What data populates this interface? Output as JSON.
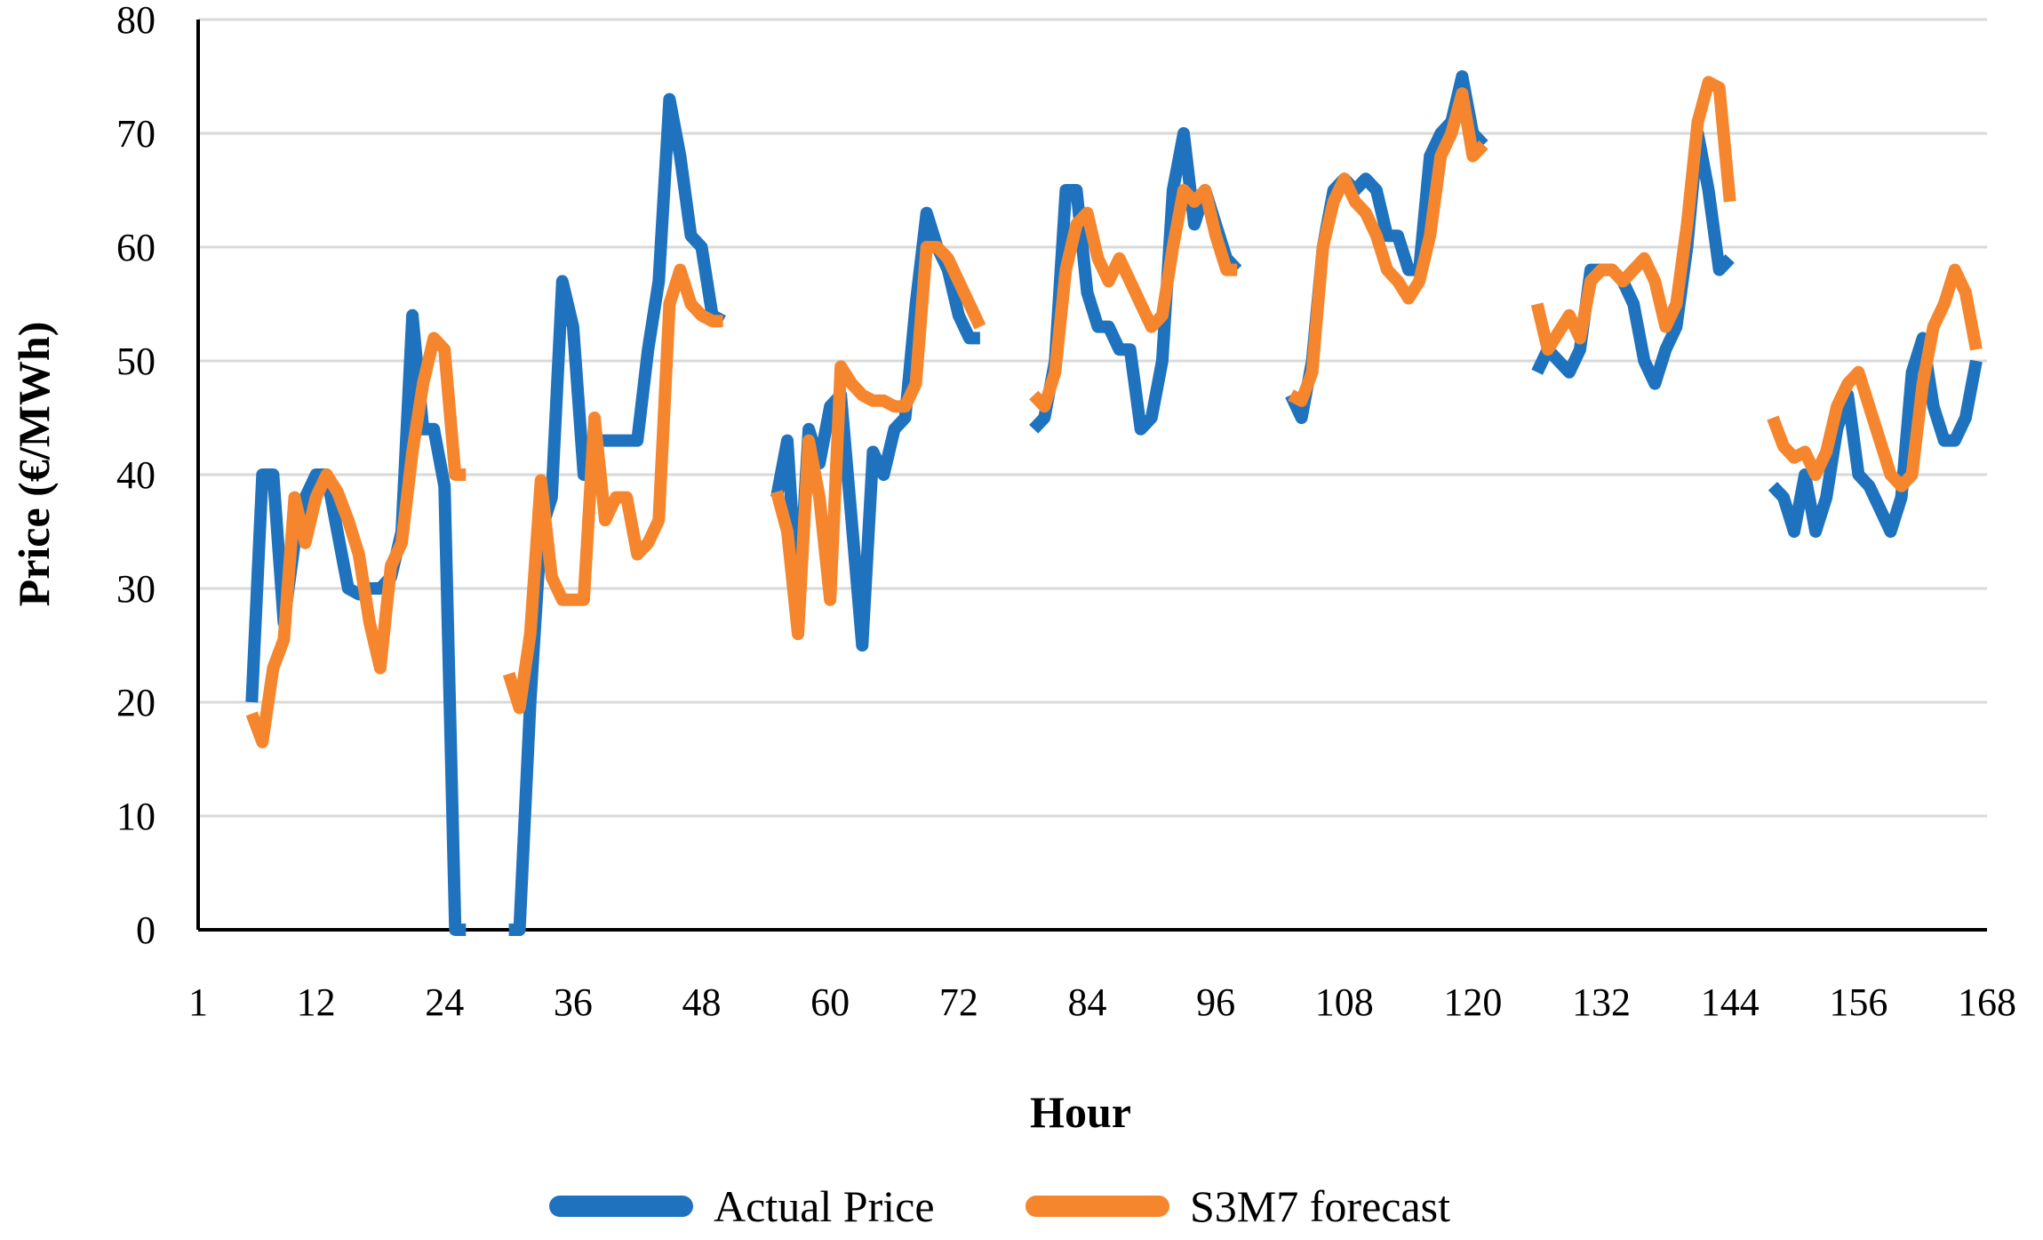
{
  "chart_data": {
    "type": "line",
    "title": "",
    "xlabel": "Hour",
    "ylabel": "Price (€/MWh)",
    "xlim": [
      1,
      168
    ],
    "ylim": [
      0,
      80
    ],
    "x_ticks": [
      1,
      12,
      24,
      36,
      48,
      60,
      72,
      84,
      96,
      108,
      120,
      132,
      144,
      156,
      168
    ],
    "x_tick_labels": [
      "1",
      "12",
      "24",
      "36",
      "48",
      "60",
      "72",
      "84",
      "96",
      "108",
      "120",
      "132",
      "144",
      "156",
      "168"
    ],
    "y_ticks": [
      0,
      10,
      20,
      30,
      40,
      50,
      60,
      70,
      80
    ],
    "y_tick_labels": [
      "0",
      "10",
      "20",
      "30",
      "40",
      "50",
      "60",
      "70",
      "80"
    ],
    "grid": "horizontal",
    "legend_position": "bottom-center",
    "series": [
      {
        "name": "Actual Price",
        "color": "#1f73be",
        "segments": [
          {
            "x": [
              6,
              7,
              8,
              9,
              10,
              11,
              12,
              13,
              14,
              15,
              16,
              17,
              18,
              19,
              20,
              21,
              22,
              23,
              24,
              25,
              26
            ],
            "y": [
              20,
              40,
              40,
              27,
              34,
              38,
              40,
              40,
              35,
              30,
              29.5,
              30,
              30,
              31,
              35,
              54,
              44,
              44,
              39,
              0,
              0
            ]
          },
          {
            "x": [
              30,
              31,
              32,
              33,
              34,
              35,
              36,
              37,
              38,
              39,
              40,
              41,
              42,
              43,
              44,
              45,
              46,
              47,
              48,
              49,
              50
            ],
            "y": [
              0,
              0,
              20,
              35,
              38,
              57,
              53,
              40,
              43,
              43,
              43,
              43,
              43,
              51,
              57,
              73,
              68,
              61,
              60,
              54,
              53.5
            ]
          },
          {
            "x": [
              55,
              56,
              57,
              58,
              59,
              60,
              61,
              62,
              63,
              64,
              65,
              66,
              67,
              68,
              69,
              70,
              71,
              72,
              73,
              74
            ],
            "y": [
              38,
              43,
              28,
              44,
              41,
              46,
              47,
              36,
              25,
              42,
              40,
              44,
              45,
              55,
              63,
              60,
              58,
              54,
              52,
              52
            ]
          },
          {
            "x": [
              79,
              80,
              81,
              82,
              83,
              84,
              85,
              86,
              87,
              88,
              89,
              90,
              91,
              92,
              93,
              94,
              95,
              96,
              97,
              98
            ],
            "y": [
              44,
              45,
              50,
              65,
              65,
              56,
              53,
              53,
              51,
              51,
              44,
              45,
              50,
              65,
              70,
              62,
              65,
              62,
              59,
              58
            ]
          },
          {
            "x": [
              103,
              104,
              105,
              106,
              107,
              108,
              109,
              110,
              111,
              112,
              113,
              114,
              115,
              116,
              117,
              118,
              119,
              120,
              121
            ],
            "y": [
              47,
              45,
              50,
              60,
              65,
              66,
              65,
              66,
              65,
              61,
              61,
              58,
              58,
              68,
              70,
              71,
              75,
              70,
              69
            ]
          },
          {
            "x": [
              126,
              127,
              128,
              129,
              130,
              131,
              132,
              133,
              134,
              135,
              136,
              137,
              138,
              139,
              140,
              141,
              142,
              143,
              144
            ],
            "y": [
              49,
              51,
              50,
              49,
              51,
              58,
              58,
              58,
              57,
              55,
              50,
              48,
              51,
              53,
              60,
              70,
              65,
              58,
              59
            ]
          },
          {
            "x": [
              148,
              149,
              150,
              151,
              152,
              153,
              154,
              155,
              156,
              157,
              158,
              159,
              160,
              161,
              162,
              163,
              164,
              165,
              166,
              167
            ],
            "y": [
              39,
              38,
              35,
              40,
              35,
              38,
              44,
              47,
              40,
              39,
              37,
              35,
              38,
              49,
              52,
              46,
              43,
              43,
              45,
              50
            ]
          }
        ]
      },
      {
        "name": "S3M7 forecast",
        "color": "#f5862e",
        "segments": [
          {
            "x": [
              6,
              7,
              8,
              9,
              10,
              11,
              12,
              13,
              14,
              15,
              16,
              17,
              18,
              19,
              20,
              21,
              22,
              23,
              24,
              25,
              26
            ],
            "y": [
              19,
              16.5,
              23,
              25.5,
              38,
              34,
              38,
              40,
              38.5,
              36,
              33,
              27,
              23,
              32,
              34,
              42,
              48,
              52,
              51,
              40,
              40
            ]
          },
          {
            "x": [
              30,
              31,
              32,
              33,
              34,
              35,
              36,
              37,
              38,
              39,
              40,
              41,
              42,
              43,
              44,
              45,
              46,
              47,
              48,
              49,
              50
            ],
            "y": [
              22.5,
              19.5,
              26,
              39.5,
              31,
              29,
              29,
              29,
              45,
              36,
              38,
              38,
              33,
              34,
              36,
              55,
              58,
              55,
              54,
              53.5,
              53.5
            ]
          },
          {
            "x": [
              55,
              56,
              57,
              58,
              59,
              60,
              61,
              62,
              63,
              64,
              65,
              66,
              67,
              68,
              69,
              70,
              71,
              72,
              73,
              74
            ],
            "y": [
              38.5,
              35,
              26,
              43,
              38,
              29,
              49.5,
              48,
              47,
              46.5,
              46.5,
              46,
              46,
              48,
              60,
              60,
              59,
              57,
              55,
              53
            ]
          },
          {
            "x": [
              79,
              80,
              81,
              82,
              83,
              84,
              85,
              86,
              87,
              88,
              89,
              90,
              91,
              92,
              93,
              94,
              95,
              96,
              97,
              98
            ],
            "y": [
              47,
              46,
              49,
              58,
              62,
              63,
              59,
              57,
              59,
              57,
              55,
              53,
              54,
              60,
              65,
              64,
              65,
              61,
              58,
              58
            ]
          },
          {
            "x": [
              103,
              104,
              105,
              106,
              107,
              108,
              109,
              110,
              111,
              112,
              113,
              114,
              115,
              116,
              117,
              118,
              119,
              120,
              121
            ],
            "y": [
              47,
              46.5,
              49,
              60,
              64,
              66,
              64,
              63,
              61,
              58,
              57,
              55.5,
              57,
              61,
              68,
              70,
              73.5,
              68,
              69
            ]
          },
          {
            "x": [
              126,
              127,
              128,
              129,
              130,
              131,
              132,
              133,
              134,
              135,
              136,
              137,
              138,
              139,
              140,
              141,
              142,
              143,
              144
            ],
            "y": [
              55,
              51,
              52.5,
              54,
              52,
              57,
              58,
              58,
              57,
              58,
              59,
              57,
              53,
              55,
              62,
              71,
              74.5,
              74,
              64
            ]
          },
          {
            "x": [
              148,
              149,
              150,
              151,
              152,
              153,
              154,
              155,
              156,
              157,
              158,
              159,
              160,
              161,
              162,
              163,
              164,
              165,
              166,
              167
            ],
            "y": [
              45,
              42.5,
              41.5,
              42,
              40,
              42,
              46,
              48,
              49,
              46,
              43,
              40,
              39,
              40,
              48,
              53,
              55,
              58,
              56,
              51
            ]
          }
        ]
      }
    ]
  }
}
